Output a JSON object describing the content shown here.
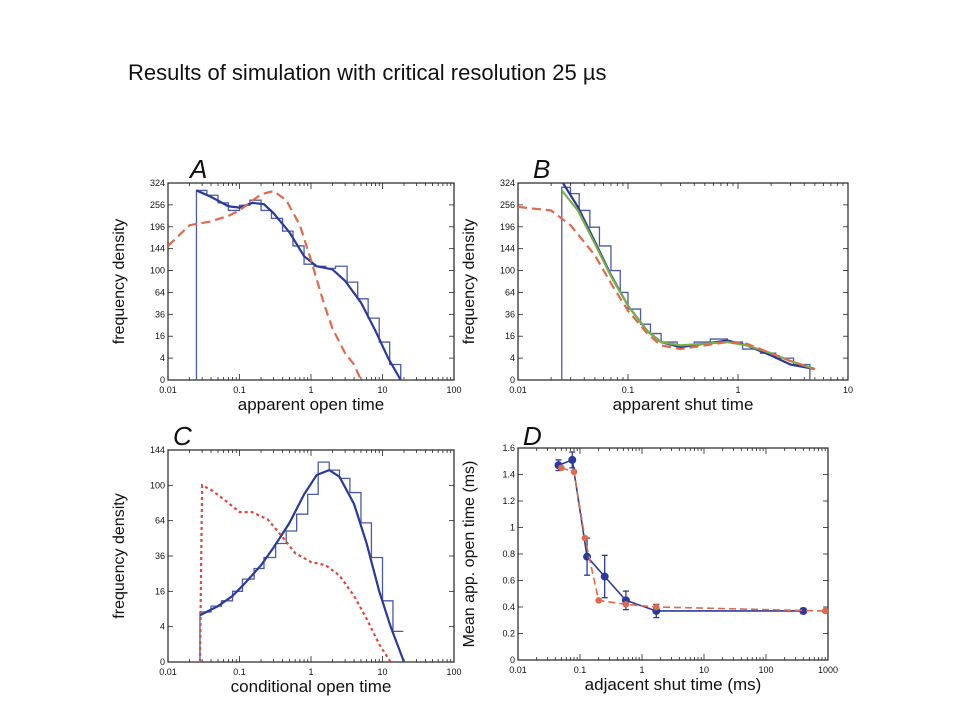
{
  "slide": {
    "title": "Results of simulation with critical resolution 25 µs"
  },
  "chart_data": [
    {
      "panel": "A",
      "type": "line",
      "xscale": "log",
      "xlabel": "apparent open time",
      "ylabel": "frequency density",
      "xlim": [
        0.01,
        100
      ],
      "ylim": [
        0,
        324
      ],
      "xticks": [
        0.01,
        0.1,
        1,
        10,
        100
      ],
      "xticklabels": [
        "0.01",
        "0.1",
        "1",
        "10",
        "100"
      ],
      "yticks": [
        0,
        4,
        16,
        36,
        64,
        100,
        144,
        196,
        256,
        324
      ],
      "yticklabels": [
        "0",
        "4",
        "16",
        "36",
        "64",
        "100",
        "144",
        "196",
        "256",
        "324"
      ],
      "yscale": "sqrt",
      "series": [
        {
          "style": "histogram",
          "color": "#4a5aa8",
          "x": [
            0.025,
            0.035,
            0.05,
            0.07,
            0.1,
            0.14,
            0.2,
            0.28,
            0.4,
            0.56,
            0.8,
            1.1,
            1.6,
            2.2,
            3.2,
            4.5,
            6.3,
            9,
            12.6,
            18
          ],
          "values": [
            300,
            285,
            262,
            240,
            255,
            270,
            240,
            218,
            185,
            150,
            112,
            108,
            104,
            108,
            80,
            55,
            32,
            12,
            2,
            0
          ]
        },
        {
          "style": "solid",
          "color": "#2a3a9a",
          "x": [
            0.025,
            0.04,
            0.07,
            0.1,
            0.15,
            0.22,
            0.3,
            0.5,
            0.8,
            1.2,
            2,
            3,
            5,
            8,
            12,
            18
          ],
          "values": [
            300,
            280,
            252,
            248,
            262,
            258,
            232,
            182,
            128,
            108,
            102,
            82,
            50,
            20,
            4,
            0
          ]
        },
        {
          "style": "dashed",
          "color": "#e06a4e",
          "x": [
            0.01,
            0.02,
            0.04,
            0.07,
            0.1,
            0.15,
            0.2,
            0.3,
            0.45,
            0.7,
            1,
            1.5,
            2,
            3,
            4,
            5
          ],
          "values": [
            150,
            200,
            210,
            225,
            240,
            268,
            288,
            298,
            270,
            200,
            120,
            50,
            22,
            6,
            2,
            0
          ]
        }
      ]
    },
    {
      "panel": "B",
      "type": "line",
      "xscale": "log",
      "xlabel": "apparent shut time",
      "ylabel": "frequency density",
      "xlim": [
        0.01,
        10
      ],
      "ylim": [
        0,
        324
      ],
      "xticks": [
        0.01,
        0.1,
        1,
        10
      ],
      "xticklabels": [
        "0.01",
        "0.1",
        "1",
        "10"
      ],
      "yticks": [
        0,
        4,
        16,
        36,
        64,
        100,
        144,
        196,
        256,
        324
      ],
      "yticklabels": [
        "0",
        "4",
        "16",
        "36",
        "64",
        "100",
        "144",
        "196",
        "256",
        "324"
      ],
      "yscale": "sqrt",
      "series": [
        {
          "style": "histogram",
          "color": "#4a5aa8",
          "x": [
            0.025,
            0.03,
            0.036,
            0.045,
            0.055,
            0.07,
            0.085,
            0.1,
            0.13,
            0.16,
            0.2,
            0.28,
            0.4,
            0.56,
            0.8,
            1.1,
            1.6,
            2.2,
            3.2,
            4.5
          ],
          "values": [
            310,
            290,
            240,
            195,
            150,
            100,
            64,
            42,
            26,
            18,
            12,
            10,
            12,
            14,
            12,
            8,
            6,
            4,
            2,
            0
          ]
        },
        {
          "style": "solid",
          "color": "#2a3a9a",
          "x": [
            0.025,
            0.035,
            0.05,
            0.07,
            0.1,
            0.15,
            0.2,
            0.3,
            0.5,
            0.8,
            1.2,
            2,
            3,
            5
          ],
          "values": [
            330,
            250,
            160,
            92,
            46,
            20,
            12,
            9,
            11,
            13,
            10,
            5,
            2,
            1
          ]
        },
        {
          "style": "solid",
          "color": "#7ab04a",
          "x": [
            0.025,
            0.035,
            0.05,
            0.07,
            0.1,
            0.15,
            0.2,
            0.3,
            0.5,
            0.8,
            1.2,
            2,
            3,
            5
          ],
          "values": [
            300,
            240,
            155,
            90,
            46,
            20,
            12,
            10,
            11,
            12,
            10,
            6,
            3,
            1
          ]
        },
        {
          "style": "dashed",
          "color": "#e06a4e",
          "x": [
            0.01,
            0.02,
            0.03,
            0.05,
            0.07,
            0.1,
            0.15,
            0.2,
            0.3,
            0.5,
            0.8,
            1.2,
            2,
            3,
            5
          ],
          "values": [
            250,
            240,
            200,
            130,
            78,
            40,
            18,
            10,
            8,
            10,
            12,
            11,
            6,
            3,
            1
          ]
        }
      ]
    },
    {
      "panel": "C",
      "type": "line",
      "xscale": "log",
      "xlabel": "conditional open time",
      "ylabel": "frequency density",
      "xlim": [
        0.01,
        100
      ],
      "ylim": [
        0,
        144
      ],
      "xticks": [
        0.01,
        0.1,
        1,
        10,
        100
      ],
      "xticklabels": [
        "0.01",
        "0.1",
        "1",
        "10",
        "100"
      ],
      "yticks": [
        0,
        4,
        16,
        36,
        64,
        100,
        144
      ],
      "yticklabels": [
        "0",
        "4",
        "16",
        "36",
        "64",
        "100",
        "144"
      ],
      "yscale": "sqrt",
      "series": [
        {
          "style": "histogram",
          "color": "#4a5aa8",
          "x": [
            0.028,
            0.04,
            0.056,
            0.08,
            0.11,
            0.16,
            0.22,
            0.32,
            0.45,
            0.63,
            0.9,
            1.26,
            1.8,
            2.5,
            3.5,
            5,
            7,
            10,
            14
          ],
          "values": [
            8,
            10,
            12,
            16,
            22,
            28,
            35,
            45,
            55,
            70,
            90,
            128,
            118,
            108,
            92,
            62,
            35,
            12,
            3
          ]
        },
        {
          "style": "solid",
          "color": "#2a3a9a",
          "x": [
            0.028,
            0.05,
            0.08,
            0.12,
            0.2,
            0.3,
            0.5,
            0.8,
            1.2,
            1.8,
            2.5,
            4,
            6,
            9,
            13,
            20
          ],
          "values": [
            7,
            10,
            14,
            20,
            30,
            42,
            62,
            90,
            112,
            118,
            110,
            80,
            45,
            16,
            4,
            0
          ]
        },
        {
          "style": "dotted",
          "color": "#e0483a",
          "x": [
            0.028,
            0.03,
            0.04,
            0.06,
            0.1,
            0.15,
            0.25,
            0.4,
            0.6,
            1,
            1.6,
            2.5,
            4,
            6,
            9,
            13
          ],
          "values": [
            0,
            100,
            95,
            85,
            72,
            72,
            65,
            50,
            38,
            32,
            30,
            24,
            14,
            6,
            1,
            0
          ]
        }
      ]
    },
    {
      "panel": "D",
      "type": "line",
      "xscale": "log",
      "xlabel": "adjacent shut time (ms)",
      "ylabel": "Mean app. open time (ms)",
      "xlim": [
        0.01,
        1000
      ],
      "ylim": [
        0,
        1.6
      ],
      "xticks": [
        0.01,
        0.1,
        1,
        10,
        100,
        1000
      ],
      "xticklabels": [
        "0.01",
        "0.1",
        "1",
        "10",
        "100",
        "1000"
      ],
      "yticks": [
        0,
        0.2,
        0.4,
        0.6,
        0.8,
        1,
        1.2,
        1.4,
        1.6
      ],
      "yticklabels": [
        "0",
        "0.2",
        "0.4",
        "0.6",
        "0.8",
        "1",
        "1.2",
        "1.4",
        "1.6"
      ],
      "series": [
        {
          "style": "points-solid",
          "color": "#2a3a9a",
          "x": [
            0.045,
            0.075,
            0.13,
            0.25,
            0.55,
            1.7,
            400
          ],
          "values": [
            1.47,
            1.51,
            0.78,
            0.63,
            0.45,
            0.37,
            0.37
          ],
          "err": [
            0.04,
            0.06,
            0.14,
            0.16,
            0.07,
            0.05,
            0.02
          ]
        },
        {
          "style": "points-dashed",
          "color": "#e06a4e",
          "x": [
            0.05,
            0.08,
            0.12,
            0.2,
            0.55,
            1.7,
            900
          ],
          "values": [
            1.45,
            1.42,
            0.92,
            0.45,
            0.42,
            0.4,
            0.37
          ]
        }
      ]
    }
  ]
}
